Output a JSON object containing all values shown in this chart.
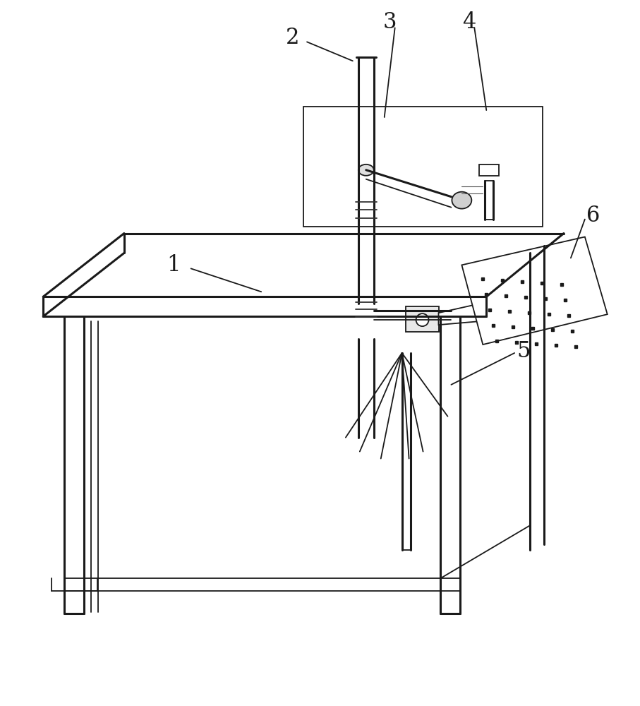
{
  "bg_color": "#ffffff",
  "lc": "#1a1a1a",
  "lw": 1.3,
  "tlw": 2.2,
  "figsize": [
    9.07,
    10.0
  ],
  "dpi": 100
}
